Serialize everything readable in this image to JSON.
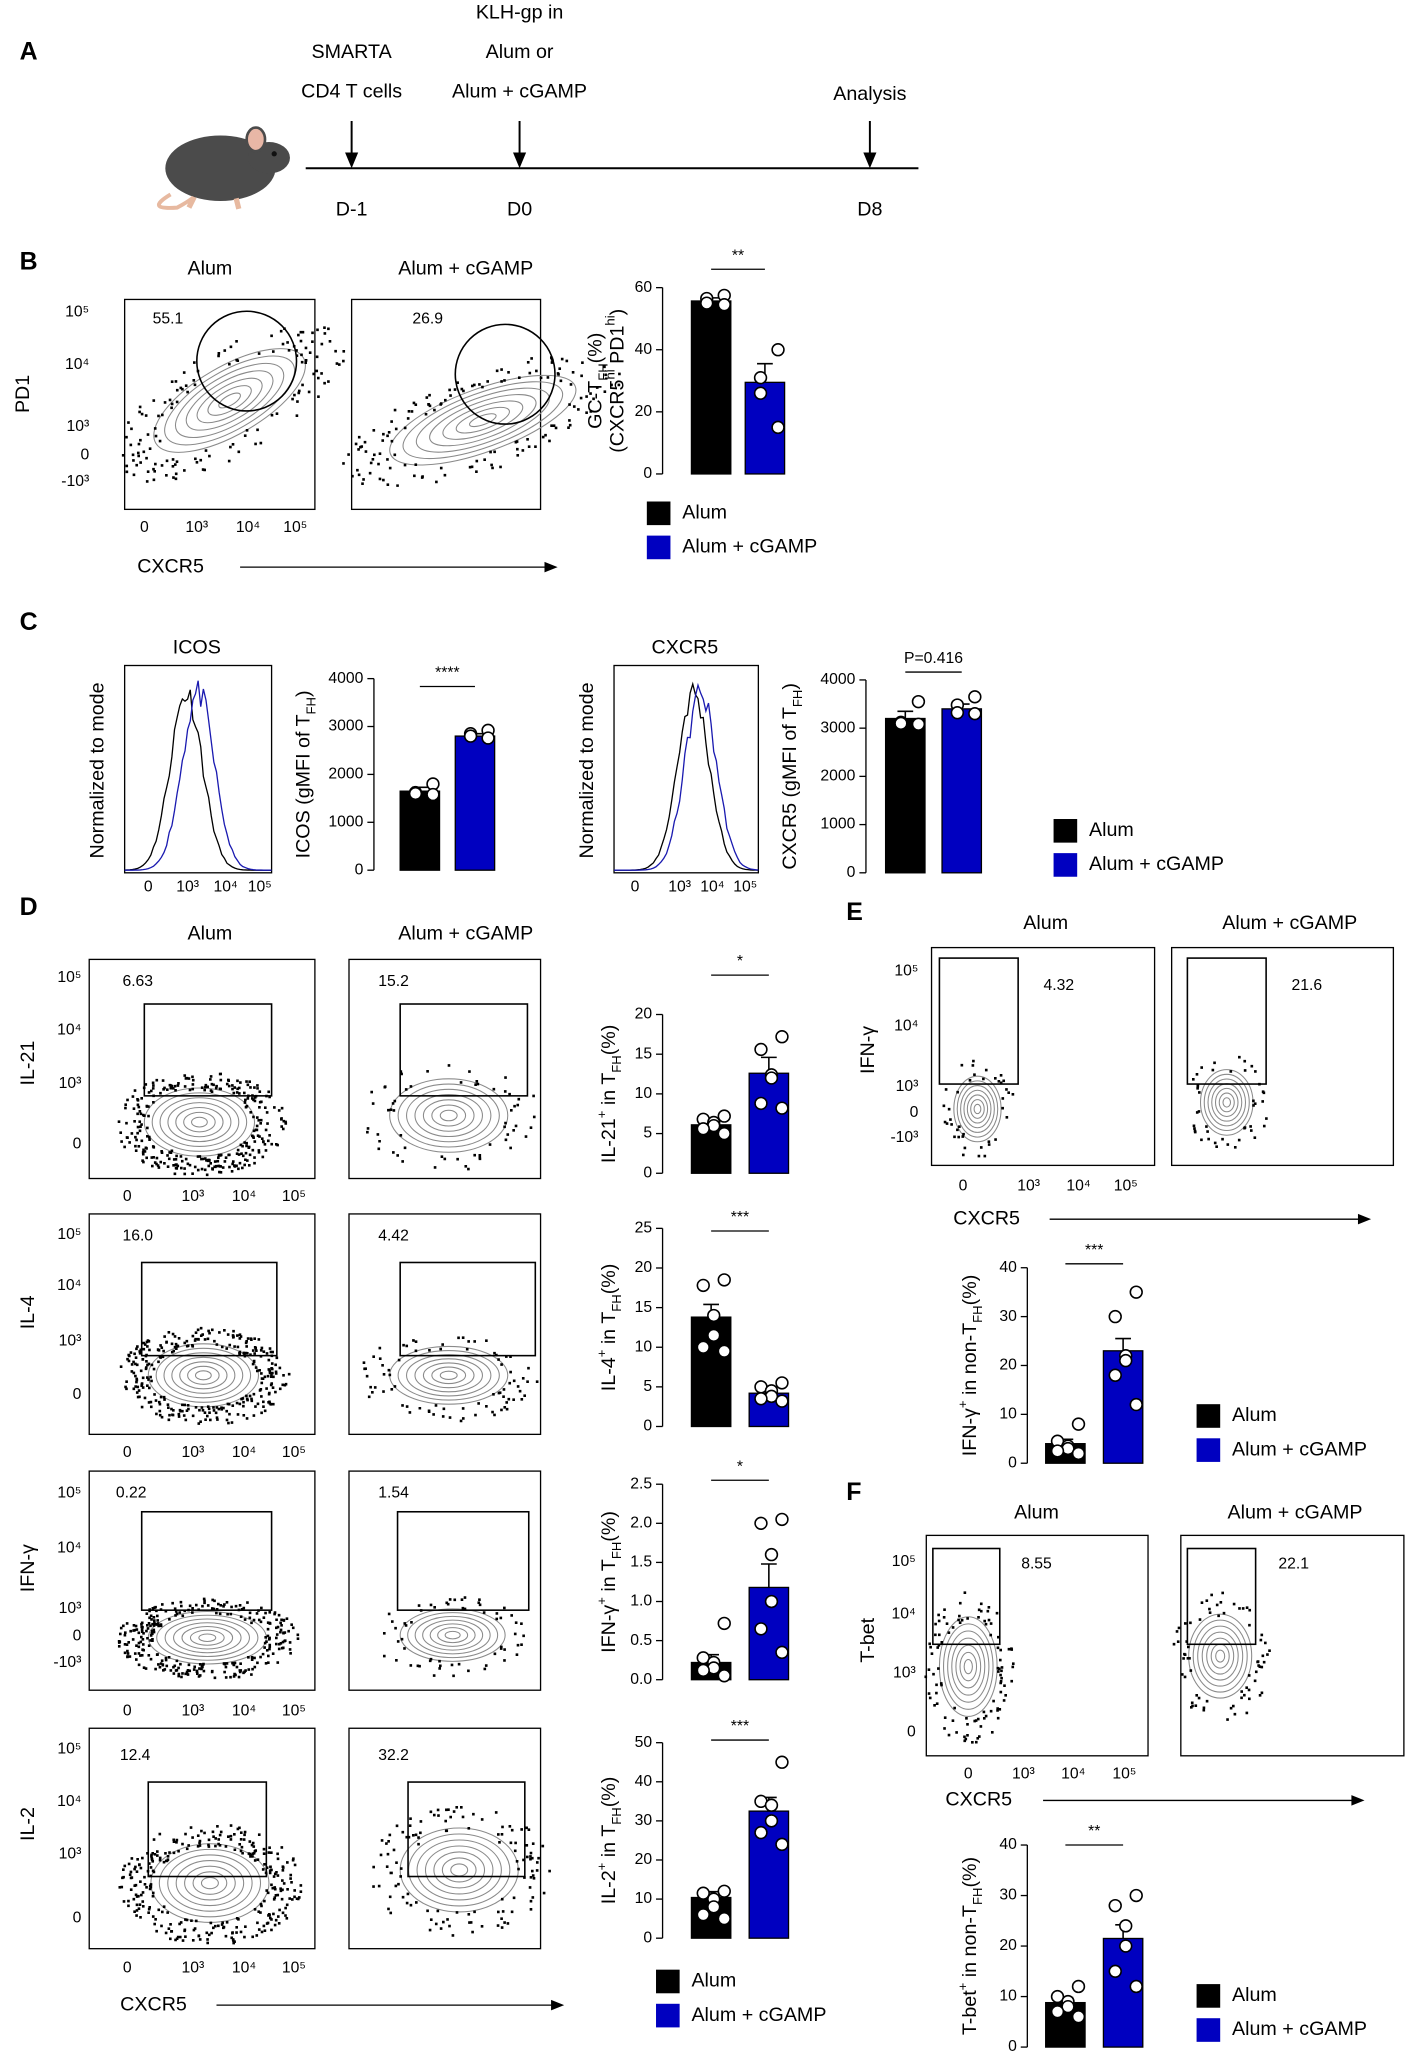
{
  "panel_letters": [
    "A",
    "B",
    "C",
    "D",
    "E",
    "F"
  ],
  "schedule": {
    "labels": [
      [
        "SMARTA",
        "CD4 T cells"
      ],
      [
        "KLH-gp in",
        "Alum or",
        "Alum + cGAMP"
      ],
      [
        "Analysis"
      ]
    ],
    "days": [
      "D-1",
      "D0",
      "D8"
    ]
  },
  "histograms": [
    {
      "title": "ICOS",
      "y_label": "Normalized to mode",
      "x_ticks": [
        "0",
        "10³",
        "10⁴",
        "10⁵"
      ]
    },
    {
      "title": "CXCR5",
      "y_label": "Normalized to mode",
      "x_ticks": [
        "0",
        "10³",
        "10⁴",
        "10⁵"
      ]
    }
  ],
  "flow": [
    {
      "columns": [
        "Alum",
        "Alum + cGAMP"
      ],
      "x_label": "CXCR5",
      "x_ticks": [
        "0",
        "10³",
        "10⁴",
        "10⁵"
      ],
      "rows": [
        {
          "y_label": "PD1",
          "y_ticks": [
            "10⁵",
            "10⁴",
            "10³",
            "0",
            "-10³"
          ],
          "gates": [
            "55.1",
            "26.9"
          ]
        }
      ]
    },
    {
      "columns": [
        "Alum",
        "Alum + cGAMP"
      ],
      "x_label": "CXCR5",
      "x_ticks": [
        "0",
        "10³",
        "10⁴",
        "10⁵"
      ],
      "rows": [
        {
          "y_label": "IL-21",
          "y_ticks": [
            "10⁵",
            "10⁴",
            "10³",
            "0"
          ],
          "gates": [
            "6.63",
            "15.2"
          ]
        },
        {
          "y_label": "IL-4",
          "y_ticks": [
            "10⁵",
            "10⁴",
            "10³",
            "0"
          ],
          "gates": [
            "16.0",
            "4.42"
          ]
        },
        {
          "y_label": "IFN-γ",
          "y_ticks": [
            "10⁵",
            "10⁴",
            "10³",
            "0",
            "-10³"
          ],
          "gates": [
            "0.22",
            "1.54"
          ]
        },
        {
          "y_label": "IL-2",
          "y_ticks": [
            "10⁵",
            "10⁴",
            "10³",
            "0"
          ],
          "gates": [
            "12.4",
            "32.2"
          ]
        }
      ]
    },
    {
      "columns": [
        "Alum",
        "Alum + cGAMP"
      ],
      "x_label": "CXCR5",
      "x_ticks": [
        "0",
        "10³",
        "10⁴",
        "10⁵"
      ],
      "rows": [
        {
          "y_label": "IFN-γ",
          "y_ticks": [
            "10⁵",
            "10⁴",
            "10³",
            "0",
            "-10³"
          ],
          "gates": [
            "4.32",
            "21.6"
          ]
        }
      ]
    },
    {
      "columns": [
        "Alum",
        "Alum + cGAMP"
      ],
      "x_label": "CXCR5",
      "x_ticks": [
        "0",
        "10³",
        "10⁴",
        "10⁵"
      ],
      "rows": [
        {
          "y_label": "T-bet",
          "y_ticks": [
            "10⁵",
            "10⁴",
            "10³",
            "0"
          ],
          "gates": [
            "8.55",
            "22.1"
          ]
        }
      ]
    }
  ],
  "chart_data": [
    {
      "type": "bar",
      "y_label": [
        [
          {
            "text": "GC-T"
          },
          {
            "text": "FH",
            "script": "sub"
          },
          {
            "text": "(%)"
          }
        ],
        [
          {
            "text": "(CXCR5"
          },
          {
            "text": "hi",
            "script": "sup"
          },
          {
            "text": " PD1"
          },
          {
            "text": "hi",
            "script": "sup"
          },
          {
            "text": ")"
          }
        ]
      ],
      "ylim": [
        0,
        60
      ],
      "yticks": [
        0,
        20,
        40,
        60
      ],
      "significance": "**",
      "legend": true,
      "series": [
        {
          "name": "Alum",
          "color": "#000000",
          "values": [
            55.7
          ],
          "errors": [
            1
          ],
          "points": [
            57.5,
            56.5,
            55,
            54.5
          ]
        },
        {
          "name": "Alum + cGAMP",
          "color": "#0000c0",
          "values": [
            29.5
          ],
          "errors": [
            6
          ],
          "points": [
            40,
            31,
            26,
            15
          ]
        }
      ]
    },
    {
      "type": "bar",
      "y_label": [
        [
          {
            "text": "ICOS (gMFI of T"
          },
          {
            "text": "FH",
            "script": "sub"
          },
          {
            "text": ")"
          }
        ]
      ],
      "ylim": [
        0,
        4000
      ],
      "yticks": [
        0,
        1000,
        2000,
        3000,
        4000
      ],
      "significance": "****",
      "series": [
        {
          "name": "Alum",
          "color": "#000000",
          "values": [
            1650
          ],
          "errors": [
            80
          ],
          "points": [
            1800,
            1620,
            1600,
            1580
          ]
        },
        {
          "name": "Alum + cGAMP",
          "color": "#0000c0",
          "values": [
            2800
          ],
          "errors": [
            50
          ],
          "points": [
            2920,
            2850,
            2800,
            2760
          ]
        }
      ]
    },
    {
      "type": "bar",
      "y_label": [
        [
          {
            "text": "CXCR5 (gMFI of T"
          },
          {
            "text": "FH",
            "script": "sub"
          },
          {
            "text": ")"
          }
        ]
      ],
      "ylim": [
        0,
        4000
      ],
      "yticks": [
        0,
        1000,
        2000,
        3000,
        4000
      ],
      "significance": "P=0.416",
      "legend": true,
      "series": [
        {
          "name": "Alum",
          "color": "#000000",
          "values": [
            3200
          ],
          "errors": [
            150
          ],
          "points": [
            3550,
            3120,
            3100,
            3080
          ]
        },
        {
          "name": "Alum + cGAMP",
          "color": "#0000c0",
          "values": [
            3400
          ],
          "errors": [
            100
          ],
          "points": [
            3650,
            3480,
            3320,
            3300
          ]
        }
      ]
    },
    {
      "type": "bar",
      "y_label": [
        [
          {
            "text": "IL-21"
          },
          {
            "text": "+",
            "script": "sup"
          },
          {
            "text": " in T"
          },
          {
            "text": "FH",
            "script": "sub"
          },
          {
            "text": "(%)"
          }
        ]
      ],
      "ylim": [
        0,
        20
      ],
      "yticks": [
        0,
        5,
        10,
        15,
        20
      ],
      "significance": "*",
      "series": [
        {
          "name": "Alum",
          "color": "#000000",
          "values": [
            6.1
          ],
          "errors": [
            0.5
          ],
          "points": [
            7.2,
            6.8,
            6.4,
            6.0,
            5.6,
            5.0
          ]
        },
        {
          "name": "Alum + cGAMP",
          "color": "#0000c0",
          "values": [
            12.6
          ],
          "errors": [
            2
          ],
          "points": [
            17.2,
            15.6,
            12.4,
            12.0,
            8.8,
            8.2
          ]
        }
      ]
    },
    {
      "type": "bar",
      "y_label": [
        [
          {
            "text": "IL-4"
          },
          {
            "text": "+",
            "script": "sup"
          },
          {
            "text": " in T"
          },
          {
            "text": "FH",
            "script": "sub"
          },
          {
            "text": "(%)"
          }
        ]
      ],
      "ylim": [
        0,
        25
      ],
      "yticks": [
        0,
        5,
        10,
        15,
        20,
        25
      ],
      "significance": "***",
      "series": [
        {
          "name": "Alum",
          "color": "#000000",
          "values": [
            13.8
          ],
          "errors": [
            1.6
          ],
          "points": [
            18.5,
            17.8,
            14,
            11.5,
            10,
            9.5
          ]
        },
        {
          "name": "Alum + cGAMP",
          "color": "#0000c0",
          "values": [
            4.2
          ],
          "errors": [
            0.4
          ],
          "points": [
            5.5,
            5,
            4.5,
            3.8,
            3.5,
            3.2
          ]
        }
      ]
    },
    {
      "type": "bar",
      "y_label": [
        [
          {
            "text": "IFN-γ"
          },
          {
            "text": "+",
            "script": "sup"
          },
          {
            "text": " in T"
          },
          {
            "text": "FH",
            "script": "sub"
          },
          {
            "text": "(%)"
          }
        ]
      ],
      "ylim": [
        0,
        2.5
      ],
      "yticks": [
        {
          "value": 0,
          "label": "0.0"
        },
        0.5,
        {
          "value": 1,
          "label": "1.0"
        },
        1.5,
        {
          "value": 2,
          "label": "2.0"
        },
        2.5
      ],
      "significance": "*",
      "series": [
        {
          "name": "Alum",
          "color": "#000000",
          "values": [
            0.22
          ],
          "errors": [
            0.1
          ],
          "points": [
            0.72,
            0.28,
            0.22,
            0.15,
            0.12,
            0.05
          ]
        },
        {
          "name": "Alum + cGAMP",
          "color": "#0000c0",
          "values": [
            1.18
          ],
          "errors": [
            0.3
          ],
          "points": [
            2.05,
            2.0,
            1.6,
            1.0,
            0.65,
            0.35
          ]
        }
      ]
    },
    {
      "type": "bar",
      "y_label": [
        [
          {
            "text": "IL-2"
          },
          {
            "text": "+",
            "script": "sup"
          },
          {
            "text": " in T"
          },
          {
            "text": "FH",
            "script": "sub"
          },
          {
            "text": "(%)"
          }
        ]
      ],
      "ylim": [
        0,
        50
      ],
      "yticks": [
        0,
        10,
        20,
        30,
        40,
        50
      ],
      "significance": "***",
      "legend": true,
      "series": [
        {
          "name": "Alum",
          "color": "#000000",
          "values": [
            10.4
          ],
          "errors": [
            1.5
          ],
          "points": [
            12,
            11.5,
            10,
            8,
            6,
            5
          ]
        },
        {
          "name": "Alum + cGAMP",
          "color": "#0000c0",
          "values": [
            32.5
          ],
          "errors": [
            3.5
          ],
          "points": [
            45,
            35,
            34,
            30,
            27,
            24
          ]
        }
      ]
    },
    {
      "type": "bar",
      "y_label": [
        [
          {
            "text": "IFN-γ"
          },
          {
            "text": "+",
            "script": "sup"
          },
          {
            "text": " in non-T"
          },
          {
            "text": "FH",
            "script": "sub"
          },
          {
            "text": "(%)"
          }
        ]
      ],
      "ylim": [
        0,
        40
      ],
      "yticks": [
        0,
        10,
        20,
        30,
        40
      ],
      "significance": "***",
      "legend": true,
      "series": [
        {
          "name": "Alum",
          "color": "#000000",
          "values": [
            4
          ],
          "errors": [
            0.9
          ],
          "points": [
            8,
            4.5,
            3.5,
            3,
            2.5,
            2
          ]
        },
        {
          "name": "Alum + cGAMP",
          "color": "#0000c0",
          "values": [
            23
          ],
          "errors": [
            2.5
          ],
          "points": [
            35,
            30,
            22,
            21,
            18,
            12
          ]
        }
      ]
    },
    {
      "type": "bar",
      "y_label": [
        [
          {
            "text": "T-bet"
          },
          {
            "text": "+",
            "script": "sup"
          },
          {
            "text": " in non-T"
          },
          {
            "text": "FH",
            "script": "sub"
          },
          {
            "text": "(%)"
          }
        ]
      ],
      "ylim": [
        0,
        40
      ],
      "yticks": [
        0,
        10,
        20,
        30,
        40
      ],
      "significance": "**",
      "legend": true,
      "series": [
        {
          "name": "Alum",
          "color": "#000000",
          "values": [
            8.8
          ],
          "errors": [
            1
          ],
          "points": [
            12,
            10,
            9,
            8,
            7,
            6
          ]
        },
        {
          "name": "Alum + cGAMP",
          "color": "#0000c0",
          "values": [
            21.5
          ],
          "errors": [
            2.7
          ],
          "points": [
            30,
            28,
            24,
            20,
            15,
            12
          ]
        }
      ]
    }
  ]
}
